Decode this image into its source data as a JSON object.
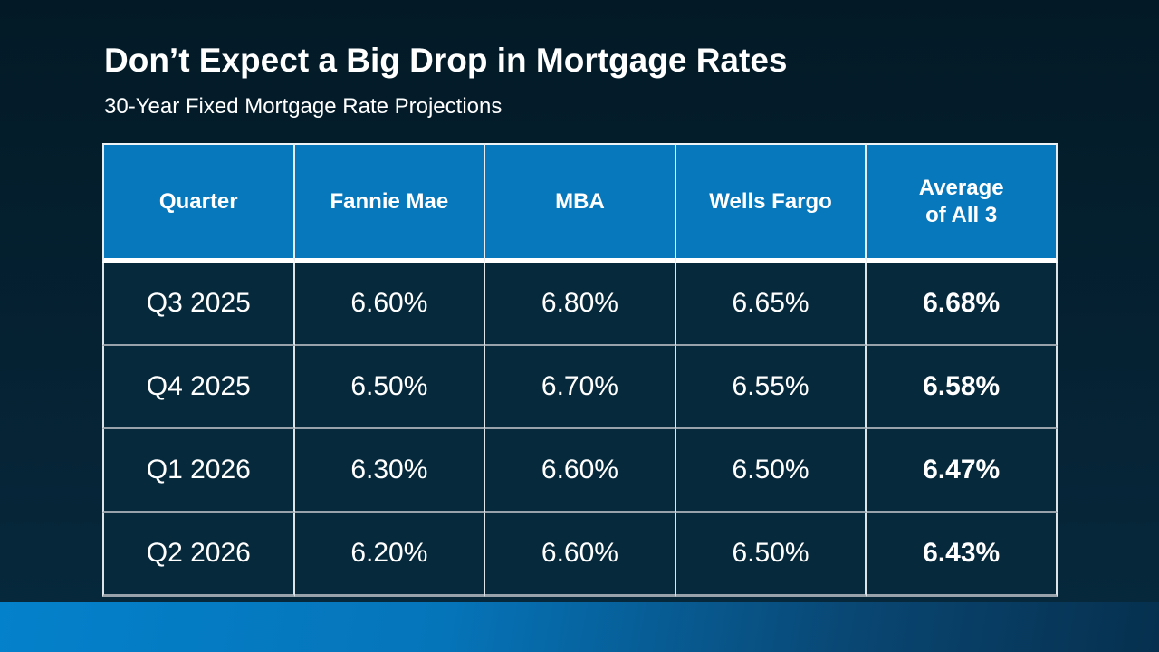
{
  "slide": {
    "title": "Don’t Expect a Big Drop in Mortgage Rates",
    "subtitle": "30-Year Fixed Mortgage Rate Projections"
  },
  "table": {
    "headers": [
      "Quarter",
      "Fannie Mae",
      "MBA",
      "Wells Fargo",
      "Average\nof All 3"
    ],
    "rows": [
      [
        "Q3 2025",
        "6.60%",
        "6.80%",
        "6.65%",
        "6.68%"
      ],
      [
        "Q4 2025",
        "6.50%",
        "6.70%",
        "6.55%",
        "6.58%"
      ],
      [
        "Q1 2026",
        "6.30%",
        "6.60%",
        "6.50%",
        "6.47%"
      ],
      [
        "Q2 2026",
        "6.20%",
        "6.60%",
        "6.50%",
        "6.43%"
      ]
    ]
  },
  "chart_data": {
    "type": "table",
    "title": "Don’t Expect a Big Drop in Mortgage Rates",
    "subtitle": "30-Year Fixed Mortgage Rate Projections",
    "columns": [
      "Quarter",
      "Fannie Mae",
      "MBA",
      "Wells Fargo",
      "Average of All 3"
    ],
    "unit": "percent",
    "rows": [
      {
        "quarter": "Q3 2025",
        "fannie_mae": 6.6,
        "mba": 6.8,
        "wells_fargo": 6.65,
        "average_of_all_3": 6.68
      },
      {
        "quarter": "Q4 2025",
        "fannie_mae": 6.5,
        "mba": 6.7,
        "wells_fargo": 6.55,
        "average_of_all_3": 6.58
      },
      {
        "quarter": "Q1 2026",
        "fannie_mae": 6.3,
        "mba": 6.6,
        "wells_fargo": 6.5,
        "average_of_all_3": 6.47
      },
      {
        "quarter": "Q2 2026",
        "fannie_mae": 6.2,
        "mba": 6.6,
        "wells_fargo": 6.5,
        "average_of_all_3": 6.43
      }
    ]
  },
  "colors": {
    "background_top": "#031a26",
    "background_bottom": "#07293d",
    "header_fill": "#0878bc",
    "cell_fill": "#07293c",
    "grid_vertical": "#e6ecf0",
    "grid_horizontal": "#97a2aa",
    "header_separator": "#ffffff",
    "accent_bar_left": "#0481cb",
    "accent_bar_right": "#06304e",
    "text": "#ffffff"
  }
}
